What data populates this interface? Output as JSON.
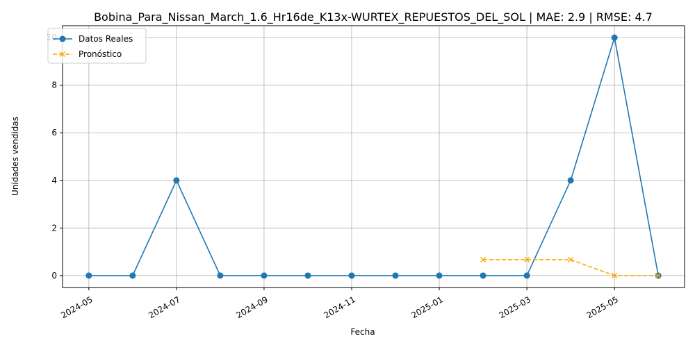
{
  "chart_data": {
    "type": "line",
    "title": "Bobina_Para_Nissan_March_1.6_Hr16de_K13x-WURTEX_REPUESTOS_DEL_SOL | MAE: 2.9 | RMSE: 4.7",
    "xlabel": "Fecha",
    "ylabel": "Unidades vendidas",
    "ylim": [
      -0.5,
      10.5
    ],
    "y_ticks": [
      0,
      2,
      4,
      6,
      8,
      10
    ],
    "x_ticks": [
      "2024-05",
      "2024-07",
      "2024-09",
      "2024-11",
      "2025-01",
      "2025-03",
      "2025-05"
    ],
    "grid": true,
    "legend_position": "upper-left",
    "series": [
      {
        "name": "Datos Reales",
        "color": "#1f77b4",
        "marker": "circle",
        "line_style": "solid",
        "x": [
          "2024-05",
          "2024-06",
          "2024-07",
          "2024-08",
          "2024-09",
          "2024-10",
          "2024-11",
          "2024-12",
          "2025-01",
          "2025-02",
          "2025-03",
          "2025-04",
          "2025-05",
          "2025-06"
        ],
        "values": [
          0,
          0,
          4,
          0,
          0,
          0,
          0,
          0,
          0,
          0,
          0,
          4,
          10,
          0
        ]
      },
      {
        "name": "Pronóstico",
        "color": "#ffa500",
        "marker": "x",
        "line_style": "dashed",
        "x": [
          "2025-02",
          "2025-03",
          "2025-04",
          "2025-05",
          "2025-06"
        ],
        "values": [
          0.67,
          0.67,
          0.67,
          0,
          0
        ]
      }
    ]
  }
}
